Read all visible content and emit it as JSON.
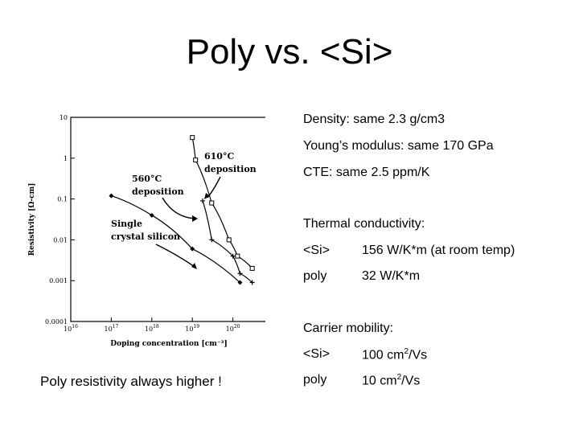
{
  "slide": {
    "title": "Poly vs. <Si>",
    "caption": "Poly resistivity always higher !"
  },
  "properties": {
    "density": "Density: same 2.3 g/cm3",
    "youngs": "Young’s modulus: same 170 GPa",
    "cte": "CTE: same 2.5 ppm/K",
    "thermal_heading": "Thermal conductivity:",
    "thermal_rows": [
      {
        "label": "<Si>",
        "value": "156 W/K*m (at room temp)"
      },
      {
        "label": "poly",
        "value": "32 W/K*m"
      }
    ],
    "mobility_heading": "Carrier mobility:",
    "mobility_rows": [
      {
        "label": "<Si>",
        "value_base": "100 cm",
        "value_sup": "2",
        "value_tail": "/Vs"
      },
      {
        "label": "poly",
        "value_base": "10 cm",
        "value_sup": "2",
        "value_tail": "/Vs"
      }
    ]
  },
  "chart_data": {
    "type": "line",
    "xlabel": "Doping concentration [cm⁻³]",
    "ylabel": "Resistivity [Ω-cm]",
    "x_scale": "log",
    "y_scale": "log",
    "xlim": [
      1e+16,
      1e+21
    ],
    "ylim": [
      0.0001,
      10
    ],
    "x_ticks": [
      {
        "v": 1e+16,
        "b": "10",
        "e": "16"
      },
      {
        "v": 1e+17,
        "b": "10",
        "e": "17"
      },
      {
        "v": 1e+18,
        "b": "10",
        "e": "18"
      },
      {
        "v": 1e+19,
        "b": "10",
        "e": "19"
      },
      {
        "v": 1e+20,
        "b": "10",
        "e": "20"
      }
    ],
    "y_ticks": [
      {
        "v": 10,
        "label": "10"
      },
      {
        "v": 1,
        "label": "1"
      },
      {
        "v": 0.1,
        "label": "0.1"
      },
      {
        "v": 0.01,
        "label": "0.01"
      },
      {
        "v": 0.001,
        "label": "0.001"
      },
      {
        "v": 0.0001,
        "label": "0.0001"
      }
    ],
    "series": [
      {
        "name": "610°C deposition",
        "marker": "square",
        "x": [
          1e+19,
          1.2e+19,
          3e+19,
          8e+19,
          1.3e+20,
          3e+20
        ],
        "y": [
          3.2,
          0.9,
          0.08,
          0.01,
          0.004,
          0.002
        ]
      },
      {
        "name": "560°C deposition",
        "marker": "plus",
        "x": [
          1.8e+19,
          3e+19,
          1e+20,
          1.5e+20,
          3e+20
        ],
        "y": [
          0.09,
          0.01,
          0.004,
          0.0015,
          0.0009
        ]
      },
      {
        "name": "Single crystal silicon",
        "marker": "diamond",
        "x": [
          1e+17,
          1e+18,
          1e+19,
          1.5e+20
        ],
        "y": [
          0.12,
          0.04,
          0.006,
          0.0009
        ]
      }
    ],
    "annotations": [
      {
        "lines": [
          "610°C",
          "deposition"
        ]
      },
      {
        "lines": [
          "560°C",
          "deposition"
        ]
      },
      {
        "lines": [
          "Single",
          "crystal silicon"
        ]
      }
    ]
  }
}
